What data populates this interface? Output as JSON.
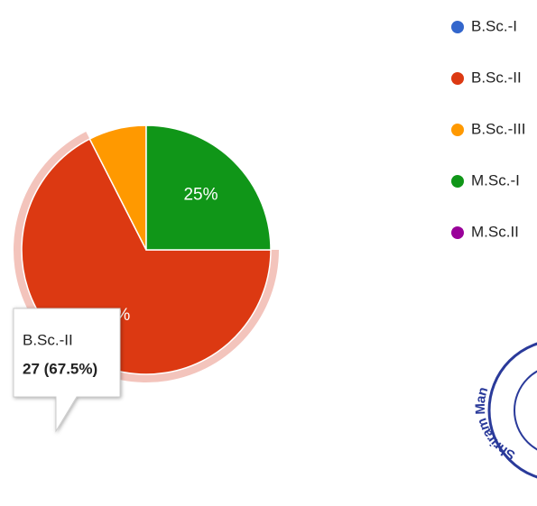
{
  "chart_data": {
    "type": "pie",
    "categories": [
      "B.Sc.-I",
      "B.Sc.-II",
      "B.Sc.-III",
      "M.Sc.-I",
      "M.Sc.II"
    ],
    "values": [
      0,
      27,
      3,
      10,
      0
    ],
    "value_labels": [
      null,
      "67.5%",
      null,
      "25%",
      null
    ],
    "colors": [
      "#3366cc",
      "#dc3912",
      "#ff9900",
      "#109618",
      "#990099"
    ],
    "legend": "right",
    "highlighted": 1,
    "tooltip": "27 (67.5%)"
  },
  "stamp": "Shriram Man"
}
